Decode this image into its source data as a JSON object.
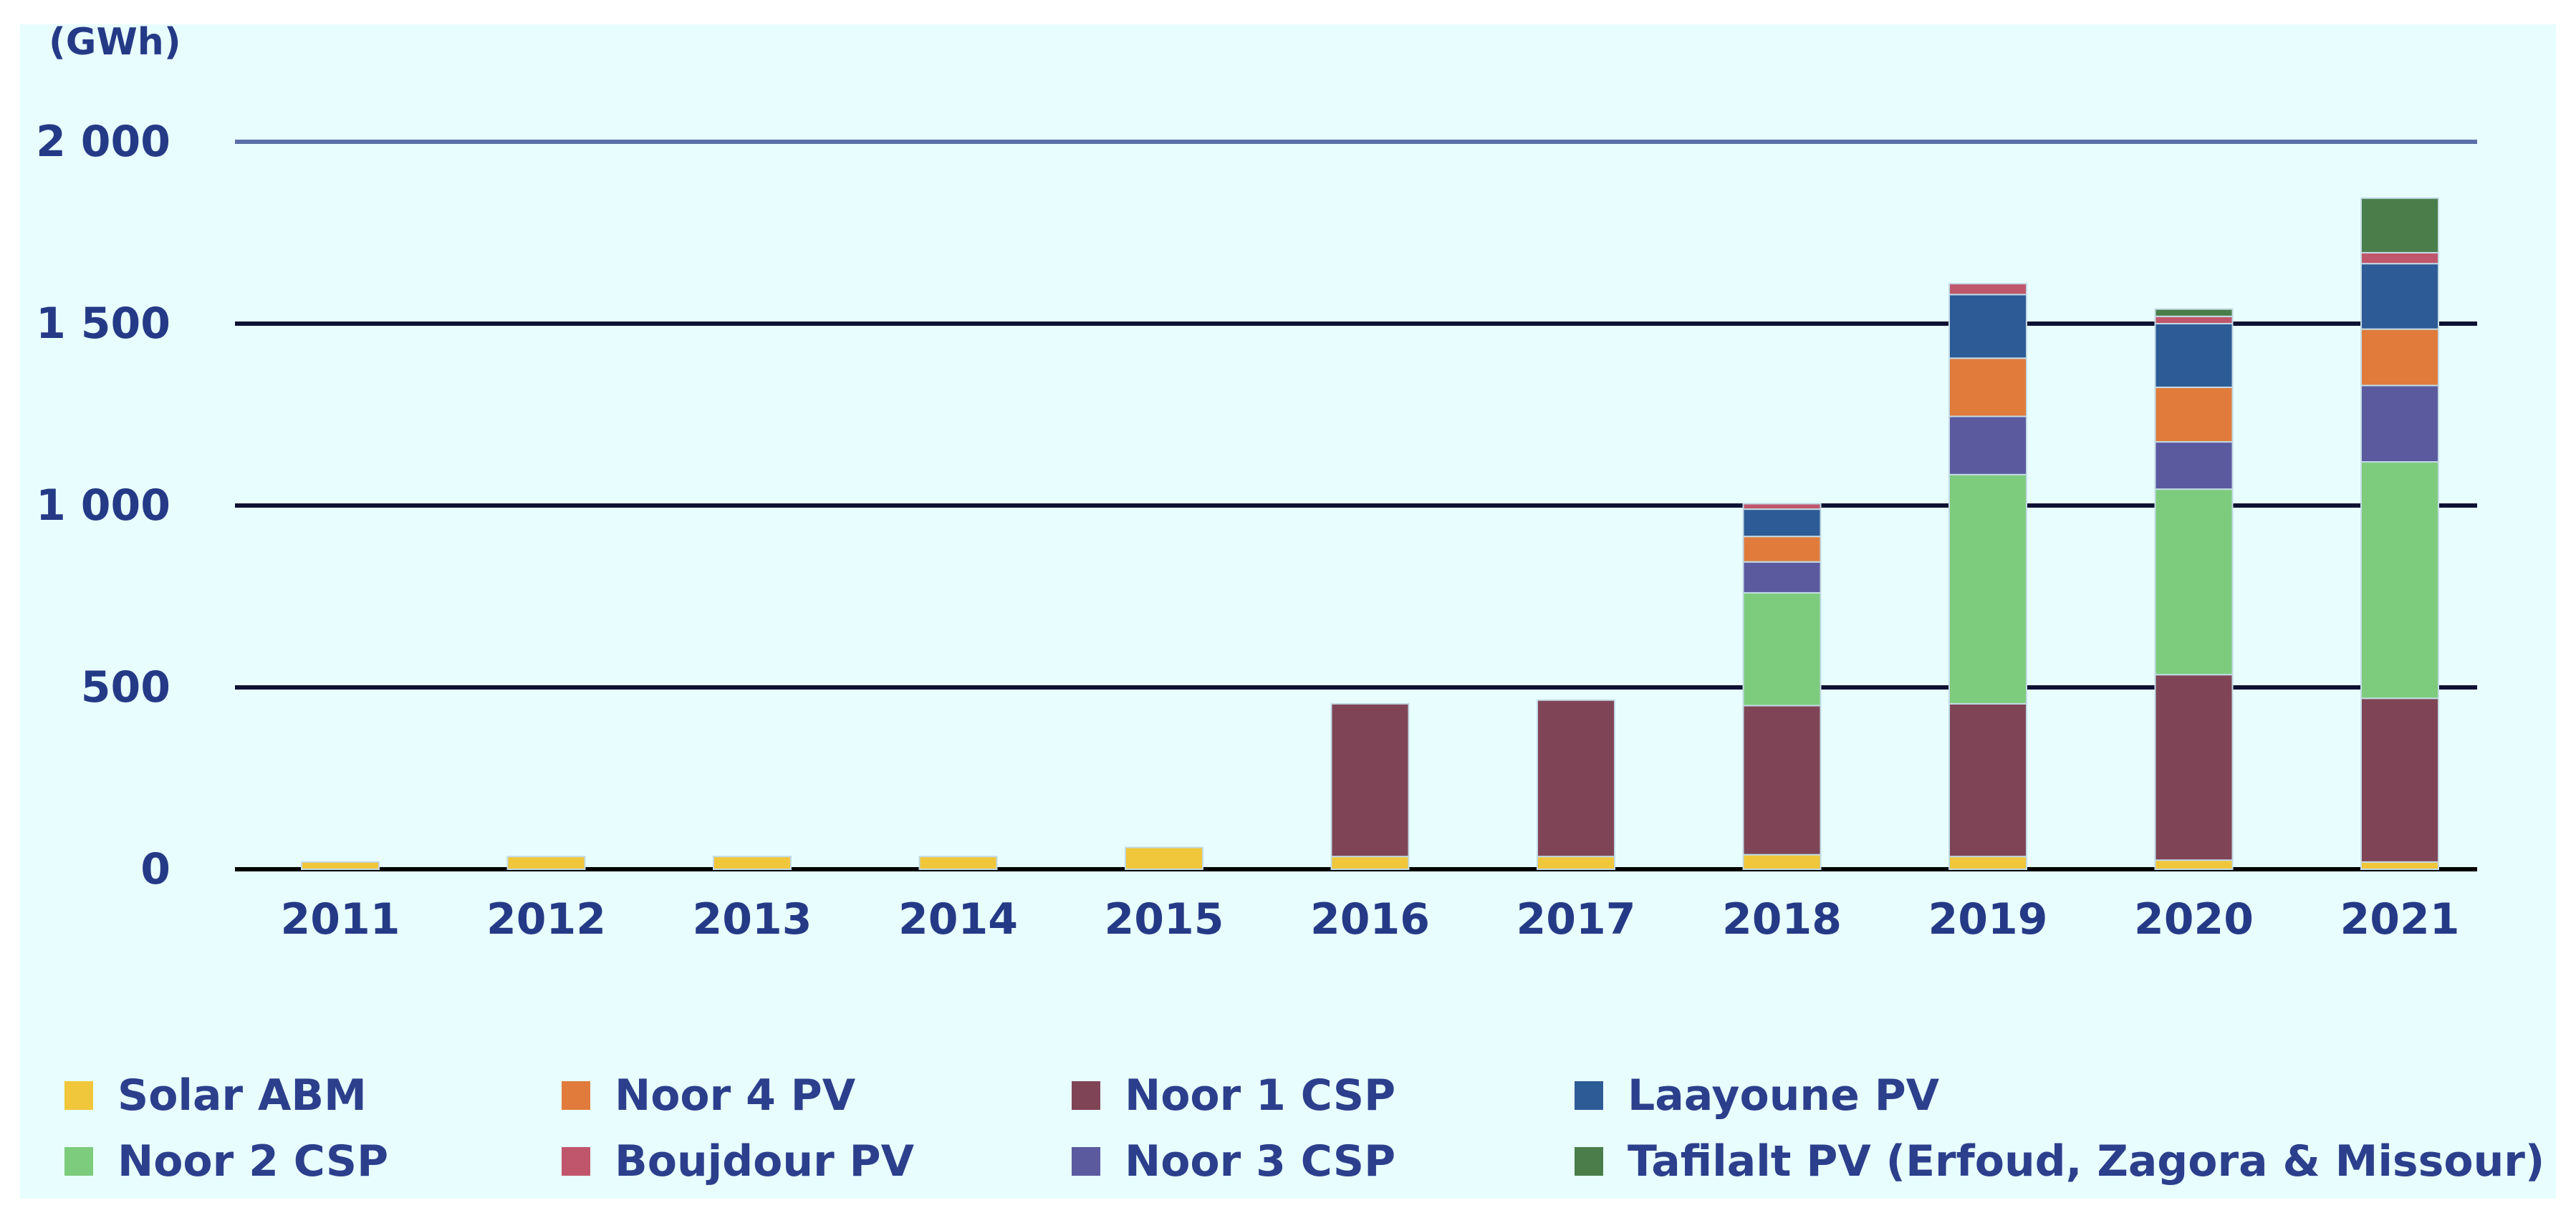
{
  "chart_data": {
    "type": "bar",
    "stacked": true,
    "title": "",
    "unit_label": "(GWh)",
    "ylabel": "",
    "xlabel": "",
    "ylim": [
      0,
      2000
    ],
    "y_ticks": [
      0,
      500,
      1000,
      1500,
      2000
    ],
    "y_tick_labels": [
      "0",
      "500",
      "1 000",
      "1 500",
      "2 000"
    ],
    "categories": [
      "2011",
      "2012",
      "2013",
      "2014",
      "2015",
      "2016",
      "2017",
      "2018",
      "2019",
      "2020",
      "2021"
    ],
    "grid": true,
    "legend_position": "bottom",
    "series": [
      {
        "name": "Solar ABM",
        "color": "#f0c63a",
        "values": [
          20,
          35,
          35,
          35,
          60,
          35,
          35,
          40,
          35,
          25,
          20
        ]
      },
      {
        "name": "Noor 1 CSP",
        "color": "#7f4556",
        "values": [
          0,
          0,
          0,
          0,
          0,
          420,
          430,
          410,
          420,
          510,
          450
        ]
      },
      {
        "name": "Noor 2 CSP",
        "color": "#7dcc7d",
        "values": [
          0,
          0,
          0,
          0,
          0,
          0,
          0,
          310,
          630,
          510,
          650
        ]
      },
      {
        "name": "Noor 3 CSP",
        "color": "#5b5a9f",
        "values": [
          0,
          0,
          0,
          0,
          0,
          0,
          0,
          85,
          160,
          130,
          210
        ]
      },
      {
        "name": "Noor 4 PV",
        "color": "#e07b3c",
        "values": [
          0,
          0,
          0,
          0,
          0,
          0,
          0,
          70,
          160,
          150,
          155
        ]
      },
      {
        "name": "Laayoune PV",
        "color": "#2d5b96",
        "values": [
          0,
          0,
          0,
          0,
          0,
          0,
          0,
          75,
          175,
          175,
          180
        ]
      },
      {
        "name": "Boujdour PV",
        "color": "#c0566c",
        "values": [
          0,
          0,
          0,
          0,
          0,
          0,
          0,
          15,
          30,
          20,
          30
        ]
      },
      {
        "name": "Tafilalt PV (Erfoud, Zagora & Missour)",
        "color": "#4a7d4a",
        "values": [
          0,
          0,
          0,
          0,
          0,
          0,
          0,
          0,
          0,
          20,
          150
        ]
      }
    ],
    "legend_order": [
      "Solar ABM",
      "Noor 4 PV",
      "Noor 1 CSP",
      "Laayoune PV",
      "Noor 2 CSP",
      "Boujdour PV",
      "Noor 3 CSP",
      "Tafilalt PV (Erfoud, Zagora & Missour)"
    ]
  }
}
